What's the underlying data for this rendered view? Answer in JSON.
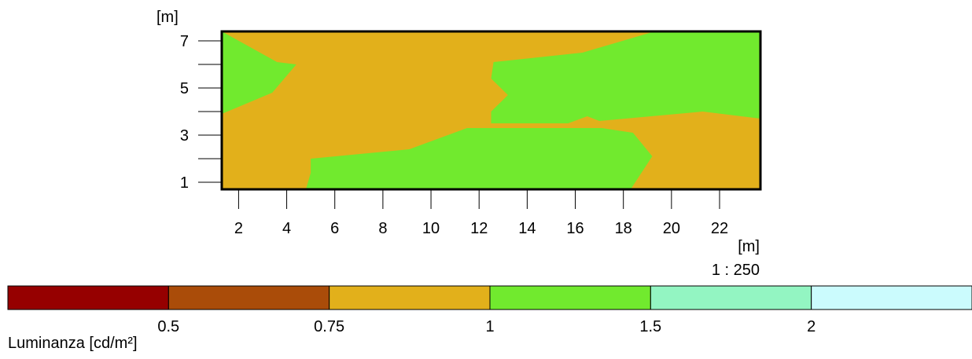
{
  "chart_data": {
    "type": "heatmap",
    "x_unit": "[m]",
    "y_unit": "[m]",
    "xlim": [
      1.3,
      23.7
    ],
    "ylim": [
      0.7,
      7.4
    ],
    "x_ticks": [
      2,
      4,
      6,
      8,
      10,
      12,
      14,
      16,
      18,
      20,
      22
    ],
    "y_ticks": [
      1,
      2,
      3,
      4,
      5,
      6,
      7
    ],
    "y_tick_labels": [
      {
        "value": 1,
        "label": "1"
      },
      {
        "value": 3,
        "label": "3"
      },
      {
        "value": 5,
        "label": "5"
      },
      {
        "value": 7,
        "label": "7"
      }
    ],
    "scale": "1 : 250",
    "background_color": "#e2b01b",
    "regions": [
      {
        "class": "1 - 1.5",
        "color": "#71ea2e",
        "points": [
          [
            1.3,
            7.4
          ],
          [
            3.6,
            6.1
          ],
          [
            4.4,
            6.0
          ],
          [
            3.4,
            4.8
          ],
          [
            1.3,
            3.9
          ]
        ]
      },
      {
        "class": "1 - 1.5",
        "color": "#71ea2e",
        "points": [
          [
            12.6,
            6.1
          ],
          [
            16.3,
            6.5
          ],
          [
            19.3,
            7.4
          ],
          [
            23.7,
            7.4
          ],
          [
            23.7,
            3.7
          ],
          [
            21.3,
            4.0
          ],
          [
            17.0,
            3.6
          ],
          [
            16.5,
            3.8
          ],
          [
            15.7,
            3.5
          ],
          [
            12.5,
            3.5
          ],
          [
            12.5,
            4.0
          ],
          [
            13.2,
            4.7
          ],
          [
            12.5,
            5.4
          ]
        ]
      },
      {
        "class": "1 - 1.5",
        "color": "#71ea2e",
        "points": [
          [
            5.0,
            2.0
          ],
          [
            9.1,
            2.4
          ],
          [
            11.5,
            3.3
          ],
          [
            17.1,
            3.3
          ],
          [
            17.1,
            3.3
          ],
          [
            18.4,
            3.1
          ],
          [
            19.2,
            2.1
          ],
          [
            18.3,
            0.7
          ],
          [
            4.8,
            0.7
          ],
          [
            5.0,
            1.4
          ]
        ]
      }
    ],
    "legend": {
      "title": "Luminanza [cd/m²]",
      "bins": [
        {
          "color": "#960000"
        },
        {
          "color": "#aa4c09"
        },
        {
          "color": "#e2b01b"
        },
        {
          "color": "#71ea2e"
        },
        {
          "color": "#93f5c2"
        },
        {
          "color": "#cbfbfd"
        }
      ],
      "thresholds": [
        "0.5",
        "0.75",
        "1",
        "1.5",
        "2"
      ]
    }
  }
}
